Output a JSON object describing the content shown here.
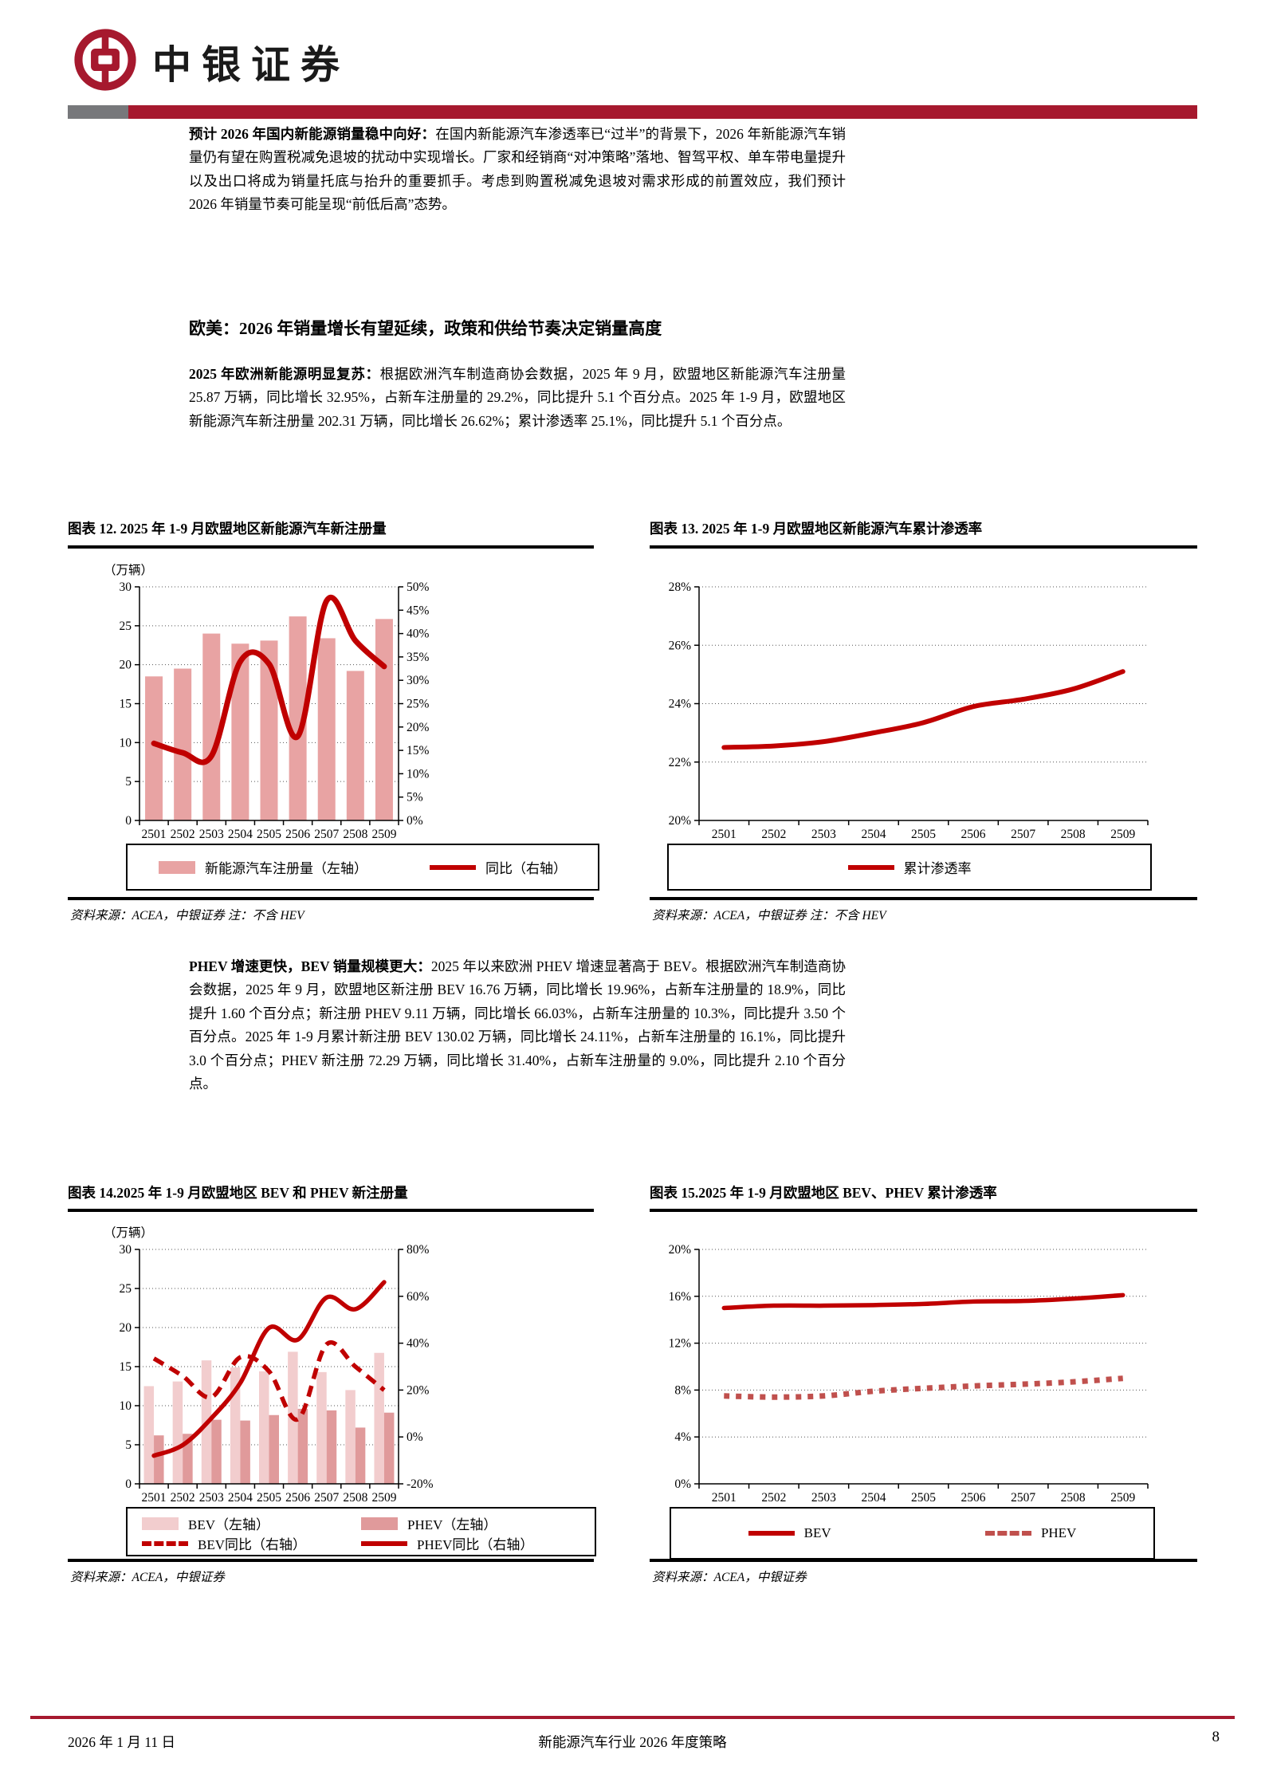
{
  "page": {
    "brand": "中银证券",
    "footer": {
      "date": "2026 年 1 月 11 日",
      "center": "新能源汽车行业 2026 年度策略",
      "page_no": "8"
    }
  },
  "colors": {
    "accent_red": "#a6192e",
    "line_red": "#c00000",
    "bar_pink": "#e8a3a3",
    "bev_bar": "#f2cdce",
    "phev_bar": "#e09a9b",
    "phev_dash": "#c0504d",
    "header_gray": "#77787b"
  },
  "paragraphs": {
    "p1_lead": "预计 2026 年国内新能源销量稳中向好：",
    "p1_body": "在国内新能源汽车渗透率已“过半”的背景下，2026 年新能源汽车销量仍有望在购置税减免退坡的扰动中实现增长。厂家和经销商“对冲策略”落地、智驾平权、单车带电量提升以及出口将成为销量托底与抬升的重要抓手。考虑到购置税减免退坡对需求形成的前置效应，我们预计 2026 年销量节奏可能呈现“前低后高”态势。",
    "h1": "欧美：2026 年销量增长有望延续，政策和供给节奏决定销量高度",
    "p2_lead": "2025 年欧洲新能源明显复苏：",
    "p2_body": "根据欧洲汽车制造商协会数据，2025 年 9 月，欧盟地区新能源汽车注册量 25.87 万辆，同比增长 32.95%，占新车注册量的 29.2%，同比提升 5.1 个百分点。2025 年 1-9 月，欧盟地区新能源汽车新注册量 202.31 万辆，同比增长 26.62%；累计渗透率 25.1%，同比提升 5.1 个百分点。",
    "p3_lead": "PHEV 增速更快，BEV 销量规模更大：",
    "p3_body": "2025 年以来欧洲 PHEV 增速显著高于 BEV。根据欧洲汽车制造商协会数据，2025 年 9 月，欧盟地区新注册 BEV 16.76 万辆，同比增长 19.96%，占新车注册量的 18.9%，同比提升 1.60 个百分点；新注册 PHEV 9.11 万辆，同比增长 66.03%，占新车注册量的 10.3%，同比提升 3.50 个百分点。2025 年 1-9 月累计新注册 BEV 130.02 万辆，同比增长 24.11%，占新车注册量的 16.1%，同比提升 3.0 个百分点；PHEV 新注册 72.29 万辆，同比增长 31.40%，占新车注册量的 9.0%，同比提升 2.10 个百分点。"
  },
  "chart_data": [
    {
      "id": "fig12",
      "type": "bar+line",
      "title": "图表 12. 2025 年 1-9 月欧盟地区新能源汽车新注册量",
      "unit_label": "（万辆）",
      "categories": [
        "2501",
        "2502",
        "2503",
        "2504",
        "2505",
        "2506",
        "2507",
        "2508",
        "2509"
      ],
      "left_axis": {
        "min": 0,
        "max": 30,
        "step": 5
      },
      "right_axis": {
        "min": 0,
        "max": 50,
        "step": 5,
        "format": "percent"
      },
      "bar_series": [
        {
          "name": "新能源汽车注册量（左轴）",
          "color": "#e8a3a3",
          "values": [
            18.5,
            19.5,
            24.0,
            22.7,
            23.1,
            26.2,
            23.4,
            19.2,
            25.87
          ]
        }
      ],
      "line_series": [
        {
          "name": "同比（右轴）",
          "axis": "right",
          "color": "#c00000",
          "width": 7,
          "values": [
            16.5,
            14.5,
            13.8,
            34.0,
            33.5,
            18.0,
            47.0,
            38.5,
            32.95
          ]
        }
      ],
      "legend": [
        {
          "label": "新能源汽车注册量（左轴）",
          "swatch": "bar",
          "color": "#e8a3a3"
        },
        {
          "label": "同比（右轴）",
          "swatch": "line",
          "color": "#c00000"
        }
      ],
      "source": "资料来源：ACEA，中银证券 注：不含 HEV"
    },
    {
      "id": "fig13",
      "type": "line",
      "title": "图表 13. 2025 年 1-9 月欧盟地区新能源汽车累计渗透率",
      "categories": [
        "2501",
        "2502",
        "2503",
        "2504",
        "2505",
        "2506",
        "2507",
        "2508",
        "2509"
      ],
      "left_axis": {
        "min": 20,
        "max": 28,
        "step": 2,
        "format": "percent"
      },
      "line_series": [
        {
          "name": "累计渗透率",
          "axis": "left",
          "color": "#c00000",
          "width": 6,
          "values": [
            22.5,
            22.55,
            22.7,
            23.0,
            23.35,
            23.9,
            24.15,
            24.5,
            25.1
          ]
        }
      ],
      "legend": [
        {
          "label": "累计渗透率",
          "swatch": "line",
          "color": "#c00000"
        }
      ],
      "source": "资料来源：ACEA，中银证券 注：不含 HEV"
    },
    {
      "id": "fig14",
      "type": "bar+line",
      "title": "图表 14.2025 年 1-9 月欧盟地区 BEV 和 PHEV 新注册量",
      "unit_label": "（万辆）",
      "categories": [
        "2501",
        "2502",
        "2503",
        "2504",
        "2505",
        "2506",
        "2507",
        "2508",
        "2509"
      ],
      "left_axis": {
        "min": 0,
        "max": 30,
        "step": 5
      },
      "right_axis": {
        "min": -20,
        "max": 80,
        "step": 20,
        "format": "percent"
      },
      "bar_series": [
        {
          "name": "BEV（左轴）",
          "color": "#f2cdce",
          "values": [
            12.5,
            13.1,
            15.8,
            14.9,
            14.4,
            16.9,
            14.3,
            12.0,
            16.76
          ]
        },
        {
          "name": "PHEV（左轴）",
          "color": "#e09a9b",
          "values": [
            6.2,
            6.4,
            8.2,
            8.1,
            8.8,
            9.6,
            9.4,
            7.2,
            9.11
          ]
        }
      ],
      "line_series": [
        {
          "name": "BEV同比（右轴）",
          "axis": "right",
          "color": "#c00000",
          "width": 5.5,
          "dash": "14 9",
          "values": [
            33.5,
            26.0,
            17.0,
            34.0,
            28.0,
            7.5,
            39.5,
            30.0,
            19.96
          ]
        },
        {
          "name": "PHEV同比（右轴）",
          "axis": "right",
          "color": "#c00000",
          "width": 5.5,
          "values": [
            -8.0,
            -3.5,
            8.0,
            23.0,
            46.5,
            41.5,
            59.5,
            54.5,
            66.03
          ]
        }
      ],
      "legend": [
        {
          "label": "BEV（左轴）",
          "swatch": "bar",
          "color": "#f2cdce"
        },
        {
          "label": "PHEV（左轴）",
          "swatch": "bar",
          "color": "#e09a9b"
        },
        {
          "label": "BEV同比（右轴）",
          "swatch": "dash",
          "color": "#c00000"
        },
        {
          "label": "PHEV同比（右轴）",
          "swatch": "line",
          "color": "#c00000"
        }
      ],
      "source": "资料来源：ACEA，中银证券"
    },
    {
      "id": "fig15",
      "type": "line",
      "title": "图表 15.2025 年 1-9 月欧盟地区 BEV、PHEV 累计渗透率",
      "categories": [
        "2501",
        "2502",
        "2503",
        "2504",
        "2505",
        "2506",
        "2507",
        "2508",
        "2509"
      ],
      "left_axis": {
        "min": 0,
        "max": 20,
        "step": 4,
        "format": "percent"
      },
      "line_series": [
        {
          "name": "BEV",
          "axis": "left",
          "color": "#c00000",
          "width": 5.5,
          "values": [
            15.0,
            15.2,
            15.2,
            15.25,
            15.35,
            15.55,
            15.6,
            15.8,
            16.1
          ]
        },
        {
          "name": "PHEV",
          "axis": "left",
          "color": "#c0504d",
          "width": 7,
          "dash": "7 8",
          "values": [
            7.5,
            7.4,
            7.5,
            7.9,
            8.15,
            8.35,
            8.5,
            8.7,
            9.0
          ]
        }
      ],
      "legend": [
        {
          "label": "BEV",
          "swatch": "line",
          "color": "#c00000"
        },
        {
          "label": "PHEV",
          "swatch": "dash",
          "color": "#c0504d"
        }
      ],
      "source": "资料来源：ACEA，中银证券"
    }
  ]
}
